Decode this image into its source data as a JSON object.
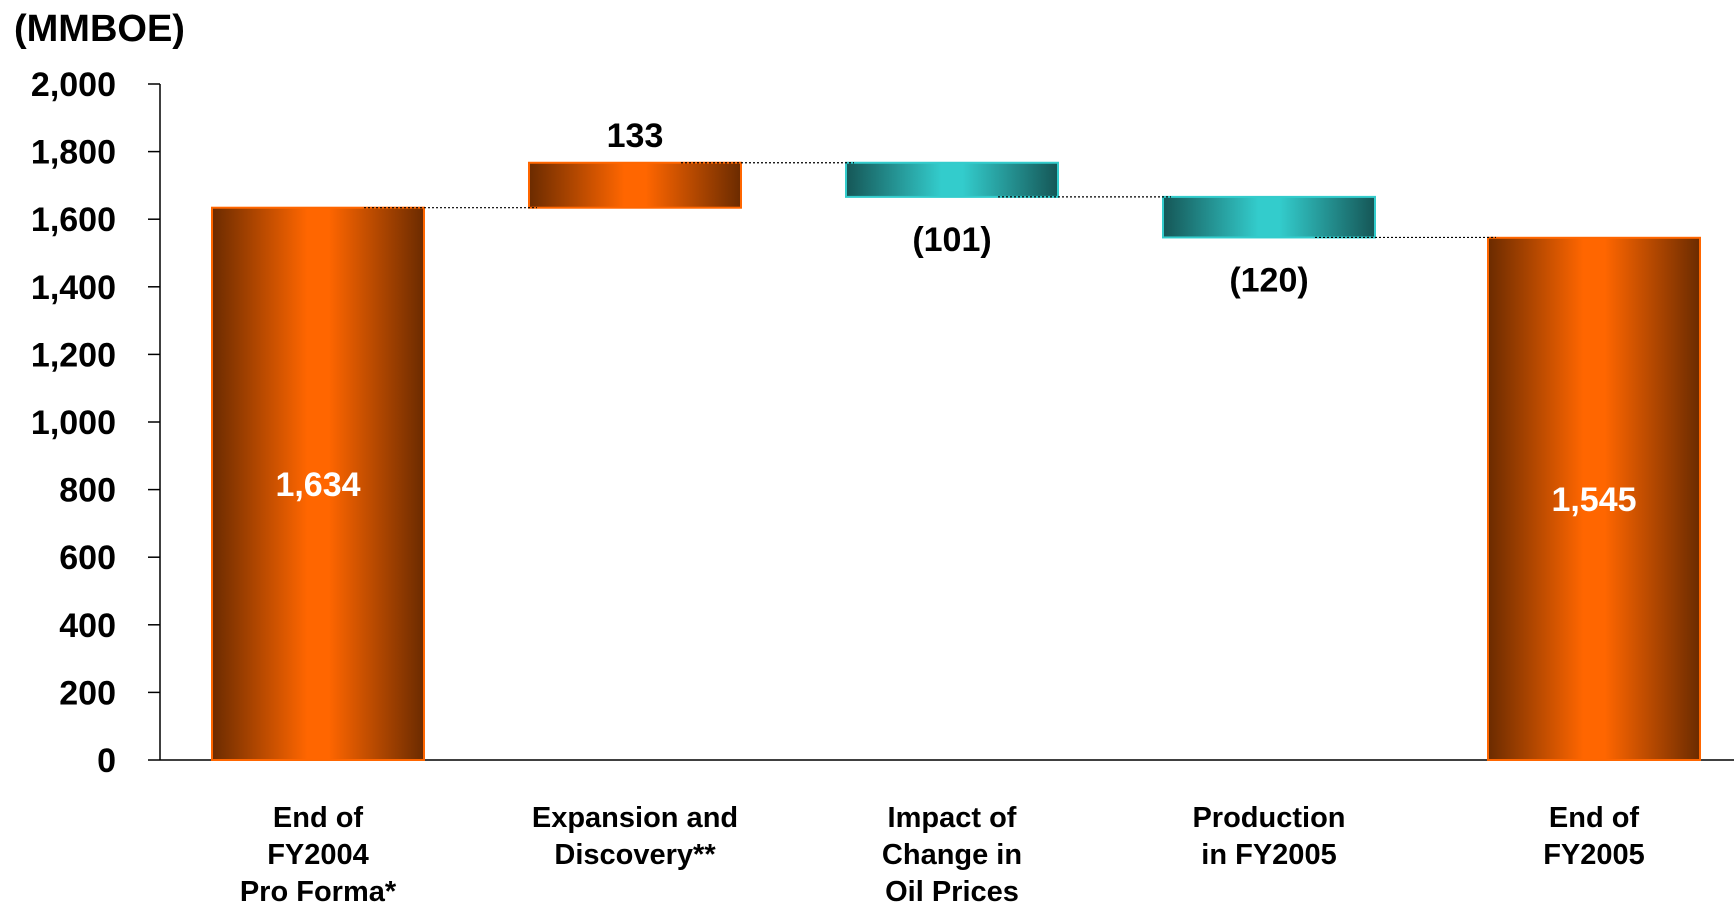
{
  "chart_data": {
    "type": "bar",
    "subtype": "waterfall",
    "unit_label": "(MMBOE)",
    "ylim": [
      0,
      2000
    ],
    "y_ticks": [
      "0",
      "200",
      "400",
      "600",
      "800",
      "1,000",
      "1,200",
      "1,400",
      "1,600",
      "1,800",
      "2,000"
    ],
    "grid": false,
    "categories": [
      [
        "End of",
        "FY2004",
        "Pro Forma*"
      ],
      [
        "Expansion and",
        "Discovery**"
      ],
      [
        "Impact of",
        "Change in",
        "Oil Prices"
      ],
      [
        "Production",
        "in FY2005"
      ],
      [
        "End of",
        "FY2005"
      ]
    ],
    "bars": [
      {
        "kind": "total",
        "start": 0,
        "end": 1634,
        "label": "1,634",
        "color": "#ff6600"
      },
      {
        "kind": "increase",
        "start": 1634,
        "end": 1767,
        "label": "133",
        "color": "#ff6600"
      },
      {
        "kind": "decrease",
        "start": 1767,
        "end": 1666,
        "label": "(101)",
        "color": "#33cccc"
      },
      {
        "kind": "decrease",
        "start": 1666,
        "end": 1546,
        "label": "(120)",
        "color": "#33cccc"
      },
      {
        "kind": "total",
        "start": 0,
        "end": 1545,
        "label": "1,545",
        "color": "#ff6600"
      }
    ]
  }
}
